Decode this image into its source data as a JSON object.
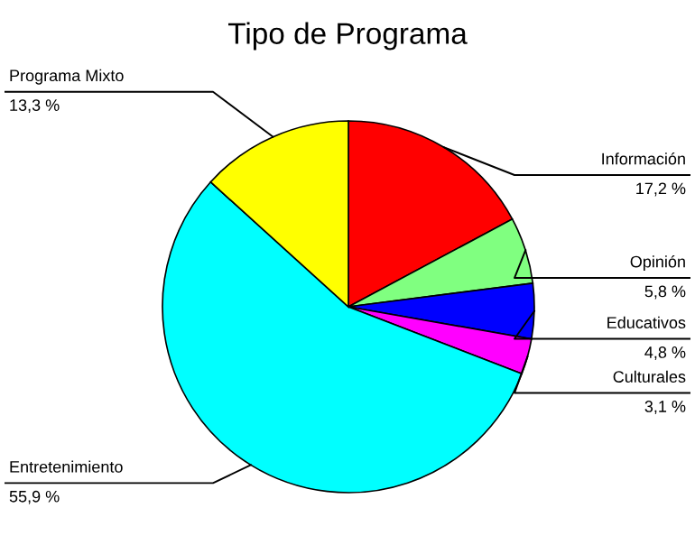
{
  "chart_data": {
    "type": "pie",
    "title": "Tipo de Programa",
    "categories": [
      "Información",
      "Opinión",
      "Educativos",
      "Culturales",
      "Entretenimiento",
      "Programa Mixto"
    ],
    "values": [
      17.2,
      5.8,
      4.8,
      3.1,
      55.9,
      13.3
    ],
    "colors": [
      "#ff0000",
      "#80ff80",
      "#0000ff",
      "#ff00ff",
      "#00ffff",
      "#ffff00"
    ],
    "value_labels": [
      "17,2 %",
      "5,8 %",
      "4,8 %",
      "3,1 %",
      "55,9 %",
      "13,3 %"
    ]
  }
}
